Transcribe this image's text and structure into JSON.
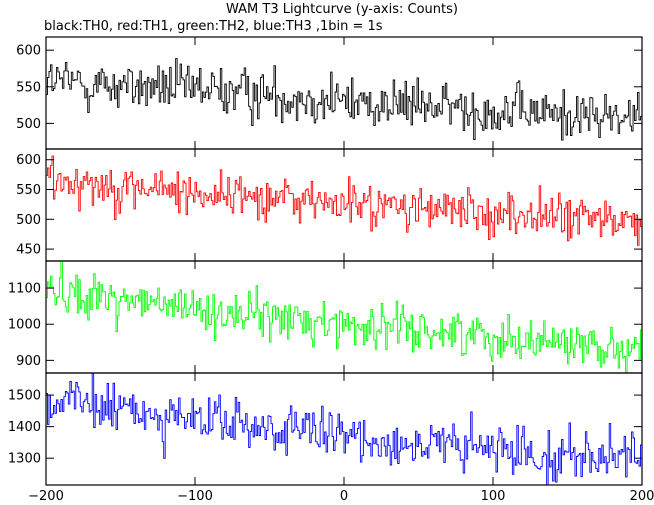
{
  "chart_data": {
    "type": "line",
    "title": "WAM T3 Lightcurve (y-axis: Counts)",
    "subtitle": "black:TH0, red:TH1, green:TH2, blue:TH3 ,1bin = 1s",
    "xlim": [
      -200,
      200
    ],
    "x_ticks": [
      -200,
      -100,
      0,
      100,
      200
    ],
    "x_bin_s": 1,
    "grid": false,
    "panels": [
      {
        "name": "TH0",
        "color": "#000000",
        "ylim": [
          465,
          618
        ],
        "y_ticks": [
          500,
          550,
          600
        ],
        "trend": [
          [
            -200,
            558
          ],
          [
            -150,
            551
          ],
          [
            -100,
            546
          ],
          [
            -50,
            540
          ],
          [
            0,
            530
          ],
          [
            50,
            524
          ],
          [
            100,
            518
          ],
          [
            150,
            512
          ],
          [
            200,
            507
          ]
        ],
        "noise_sd": 17
      },
      {
        "name": "TH1",
        "color": "#ff0000",
        "ylim": [
          430,
          618
        ],
        "y_ticks": [
          450,
          500,
          550,
          600
        ],
        "trend": [
          [
            -200,
            572
          ],
          [
            -150,
            555
          ],
          [
            -100,
            545
          ],
          [
            -50,
            538
          ],
          [
            0,
            526
          ],
          [
            50,
            518
          ],
          [
            100,
            510
          ],
          [
            150,
            503
          ],
          [
            200,
            495
          ]
        ],
        "noise_sd": 19
      },
      {
        "name": "TH2",
        "color": "#00ff00",
        "ylim": [
          865,
          1175
        ],
        "y_ticks": [
          900,
          1000,
          1100
        ],
        "trend": [
          [
            -200,
            1100
          ],
          [
            -150,
            1070
          ],
          [
            -100,
            1040
          ],
          [
            -50,
            1020
          ],
          [
            0,
            1000
          ],
          [
            50,
            985
          ],
          [
            100,
            968
          ],
          [
            150,
            950
          ],
          [
            200,
            932
          ]
        ],
        "noise_sd": 30
      },
      {
        "name": "TH3",
        "color": "#0000ff",
        "ylim": [
          1215,
          1570
        ],
        "y_ticks": [
          1300,
          1400,
          1500
        ],
        "trend": [
          [
            -200,
            1480
          ],
          [
            -150,
            1455
          ],
          [
            -100,
            1420
          ],
          [
            -50,
            1395
          ],
          [
            0,
            1365
          ],
          [
            50,
            1345
          ],
          [
            100,
            1325
          ],
          [
            150,
            1312
          ],
          [
            200,
            1290
          ]
        ],
        "noise_sd": 40
      }
    ]
  }
}
